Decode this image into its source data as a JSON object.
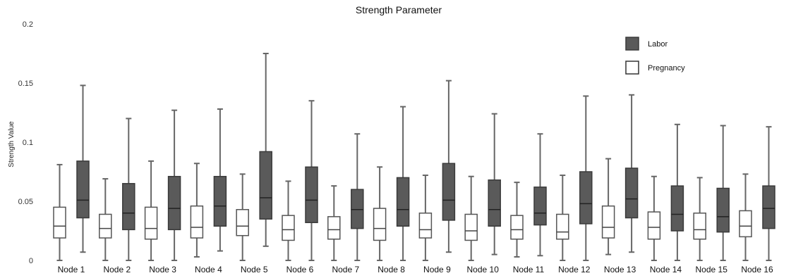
{
  "chart_data": {
    "type": "box",
    "title": "Strength Parameter",
    "xlabel": "",
    "ylabel": "Strength Value",
    "ylim": [
      0,
      0.2
    ],
    "yticks": [
      0,
      0.05,
      0.1,
      0.15,
      0.2
    ],
    "ytick_labels": [
      "0",
      "0.05",
      "0.1",
      "0.15",
      "0.2"
    ],
    "grid": false,
    "legend_position": "top-right",
    "categories": [
      "Node 1",
      "Node 2",
      "Node 3",
      "Node 4",
      "Node 5",
      "Node 6",
      "Node 7",
      "Node 8",
      "Node 9",
      "Node 10",
      "Node 11",
      "Node 12",
      "Node 13",
      "Node 14",
      "Node 15",
      "Node 16"
    ],
    "series": [
      {
        "name": "Pregnancy",
        "color": "#ffffff",
        "boxes": [
          {
            "min": 0.0,
            "q1": 0.019,
            "median": 0.029,
            "q3": 0.045,
            "max": 0.081
          },
          {
            "min": 0.0,
            "q1": 0.019,
            "median": 0.027,
            "q3": 0.039,
            "max": 0.069
          },
          {
            "min": 0.0,
            "q1": 0.018,
            "median": 0.027,
            "q3": 0.045,
            "max": 0.084
          },
          {
            "min": 0.003,
            "q1": 0.019,
            "median": 0.028,
            "q3": 0.046,
            "max": 0.082
          },
          {
            "min": 0.0,
            "q1": 0.021,
            "median": 0.029,
            "q3": 0.043,
            "max": 0.073
          },
          {
            "min": 0.0,
            "q1": 0.017,
            "median": 0.026,
            "q3": 0.038,
            "max": 0.067
          },
          {
            "min": 0.0,
            "q1": 0.018,
            "median": 0.026,
            "q3": 0.037,
            "max": 0.063
          },
          {
            "min": 0.0,
            "q1": 0.017,
            "median": 0.027,
            "q3": 0.044,
            "max": 0.079
          },
          {
            "min": 0.0,
            "q1": 0.019,
            "median": 0.026,
            "q3": 0.04,
            "max": 0.072
          },
          {
            "min": 0.0,
            "q1": 0.017,
            "median": 0.025,
            "q3": 0.039,
            "max": 0.071
          },
          {
            "min": 0.003,
            "q1": 0.018,
            "median": 0.026,
            "q3": 0.038,
            "max": 0.066
          },
          {
            "min": 0.0,
            "q1": 0.018,
            "median": 0.024,
            "q3": 0.039,
            "max": 0.072
          },
          {
            "min": 0.005,
            "q1": 0.019,
            "median": 0.028,
            "q3": 0.046,
            "max": 0.086
          },
          {
            "min": 0.0,
            "q1": 0.018,
            "median": 0.028,
            "q3": 0.041,
            "max": 0.071
          },
          {
            "min": 0.0,
            "q1": 0.018,
            "median": 0.026,
            "q3": 0.04,
            "max": 0.07
          },
          {
            "min": 0.0,
            "q1": 0.02,
            "median": 0.029,
            "q3": 0.042,
            "max": 0.073
          }
        ]
      },
      {
        "name": "Labor",
        "color": "#5a5a5a",
        "boxes": [
          {
            "min": 0.007,
            "q1": 0.036,
            "median": 0.051,
            "q3": 0.084,
            "max": 0.148
          },
          {
            "min": 0.0,
            "q1": 0.026,
            "median": 0.04,
            "q3": 0.065,
            "max": 0.12
          },
          {
            "min": 0.0,
            "q1": 0.026,
            "median": 0.044,
            "q3": 0.071,
            "max": 0.127
          },
          {
            "min": 0.008,
            "q1": 0.029,
            "median": 0.046,
            "q3": 0.071,
            "max": 0.128
          },
          {
            "min": 0.012,
            "q1": 0.035,
            "median": 0.053,
            "q3": 0.092,
            "max": 0.175
          },
          {
            "min": 0.0,
            "q1": 0.032,
            "median": 0.051,
            "q3": 0.079,
            "max": 0.135
          },
          {
            "min": 0.0,
            "q1": 0.027,
            "median": 0.043,
            "q3": 0.06,
            "max": 0.107
          },
          {
            "min": 0.0,
            "q1": 0.029,
            "median": 0.043,
            "q3": 0.07,
            "max": 0.13
          },
          {
            "min": 0.007,
            "q1": 0.034,
            "median": 0.051,
            "q3": 0.082,
            "max": 0.152
          },
          {
            "min": 0.005,
            "q1": 0.029,
            "median": 0.043,
            "q3": 0.068,
            "max": 0.124
          },
          {
            "min": 0.004,
            "q1": 0.03,
            "median": 0.04,
            "q3": 0.062,
            "max": 0.107
          },
          {
            "min": 0.0,
            "q1": 0.031,
            "median": 0.048,
            "q3": 0.075,
            "max": 0.139
          },
          {
            "min": 0.007,
            "q1": 0.036,
            "median": 0.052,
            "q3": 0.078,
            "max": 0.14
          },
          {
            "min": 0.0,
            "q1": 0.025,
            "median": 0.039,
            "q3": 0.063,
            "max": 0.115
          },
          {
            "min": 0.0,
            "q1": 0.024,
            "median": 0.037,
            "q3": 0.061,
            "max": 0.114
          },
          {
            "min": 0.0,
            "q1": 0.027,
            "median": 0.044,
            "q3": 0.063,
            "max": 0.113
          }
        ]
      }
    ],
    "legend": [
      {
        "label": "Labor",
        "color": "#5a5a5a"
      },
      {
        "label": "Pregnancy",
        "color": "#ffffff"
      }
    ]
  }
}
